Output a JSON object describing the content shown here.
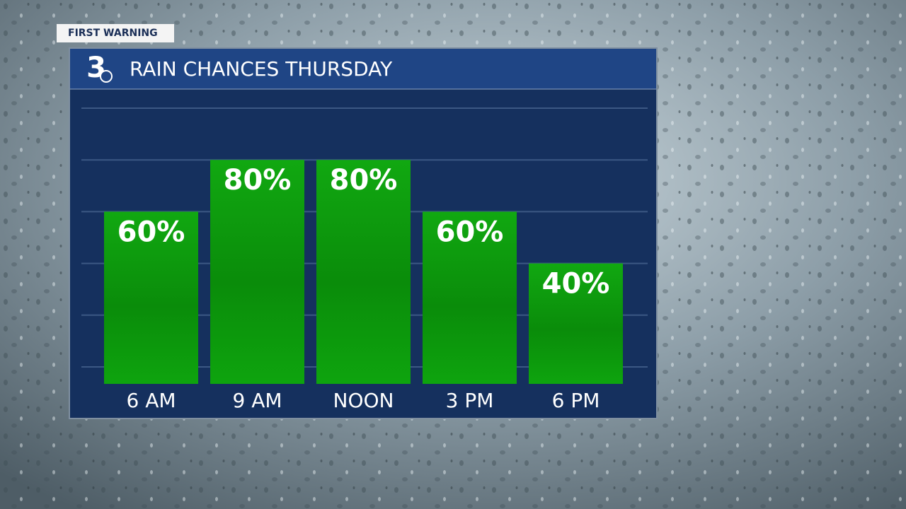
{
  "chart_data": {
    "type": "bar",
    "badge": "FIRST WARNING",
    "logo": "3",
    "title": "RAIN CHANCES THURSDAY",
    "categories": [
      "6 AM",
      "9 AM",
      "NOON",
      "3 PM",
      "6 PM"
    ],
    "values": [
      60,
      80,
      80,
      60,
      40
    ],
    "value_labels": [
      "60%",
      "80%",
      "80%",
      "60%",
      "40%"
    ],
    "color": "#0a9a0a",
    "ylim": [
      0,
      100
    ],
    "yticks": [
      0,
      20,
      40,
      60,
      80,
      100
    ],
    "grid": true
  }
}
